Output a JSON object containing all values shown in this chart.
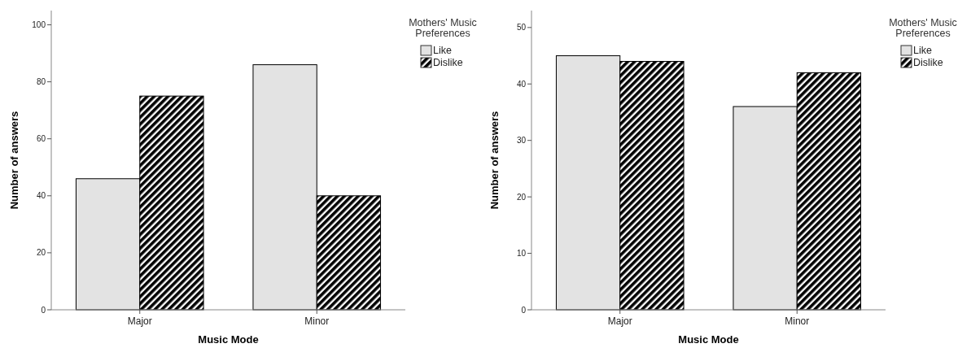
{
  "chart_data": [
    {
      "type": "bar",
      "categories": [
        "Major",
        "Minor"
      ],
      "xlabel": "Music Mode",
      "ylabel": "Number of answers",
      "legend_title": "Mothers' Music Preferences",
      "legend": "top right",
      "ylim": [
        0,
        105
      ],
      "yticks": [
        0,
        20,
        40,
        60,
        80,
        100
      ],
      "series": [
        {
          "name": "Like",
          "color": "#e3e3e3",
          "values": [
            46,
            86
          ]
        },
        {
          "name": "Dislike",
          "color": "#000000",
          "values": [
            75,
            40
          ]
        }
      ]
    },
    {
      "type": "bar",
      "categories": [
        "Major",
        "Minor"
      ],
      "xlabel": "Music Mode",
      "ylabel": "Number of answers",
      "legend_title": "Mothers' Music Preferences",
      "legend": "top right",
      "ylim": [
        0,
        53
      ],
      "yticks": [
        0,
        10,
        20,
        30,
        40,
        50
      ],
      "series": [
        {
          "name": "Like",
          "color": "#e3e3e3",
          "values": [
            45,
            36
          ]
        },
        {
          "name": "Dislike",
          "color": "#000000",
          "values": [
            44,
            42
          ]
        }
      ]
    }
  ]
}
